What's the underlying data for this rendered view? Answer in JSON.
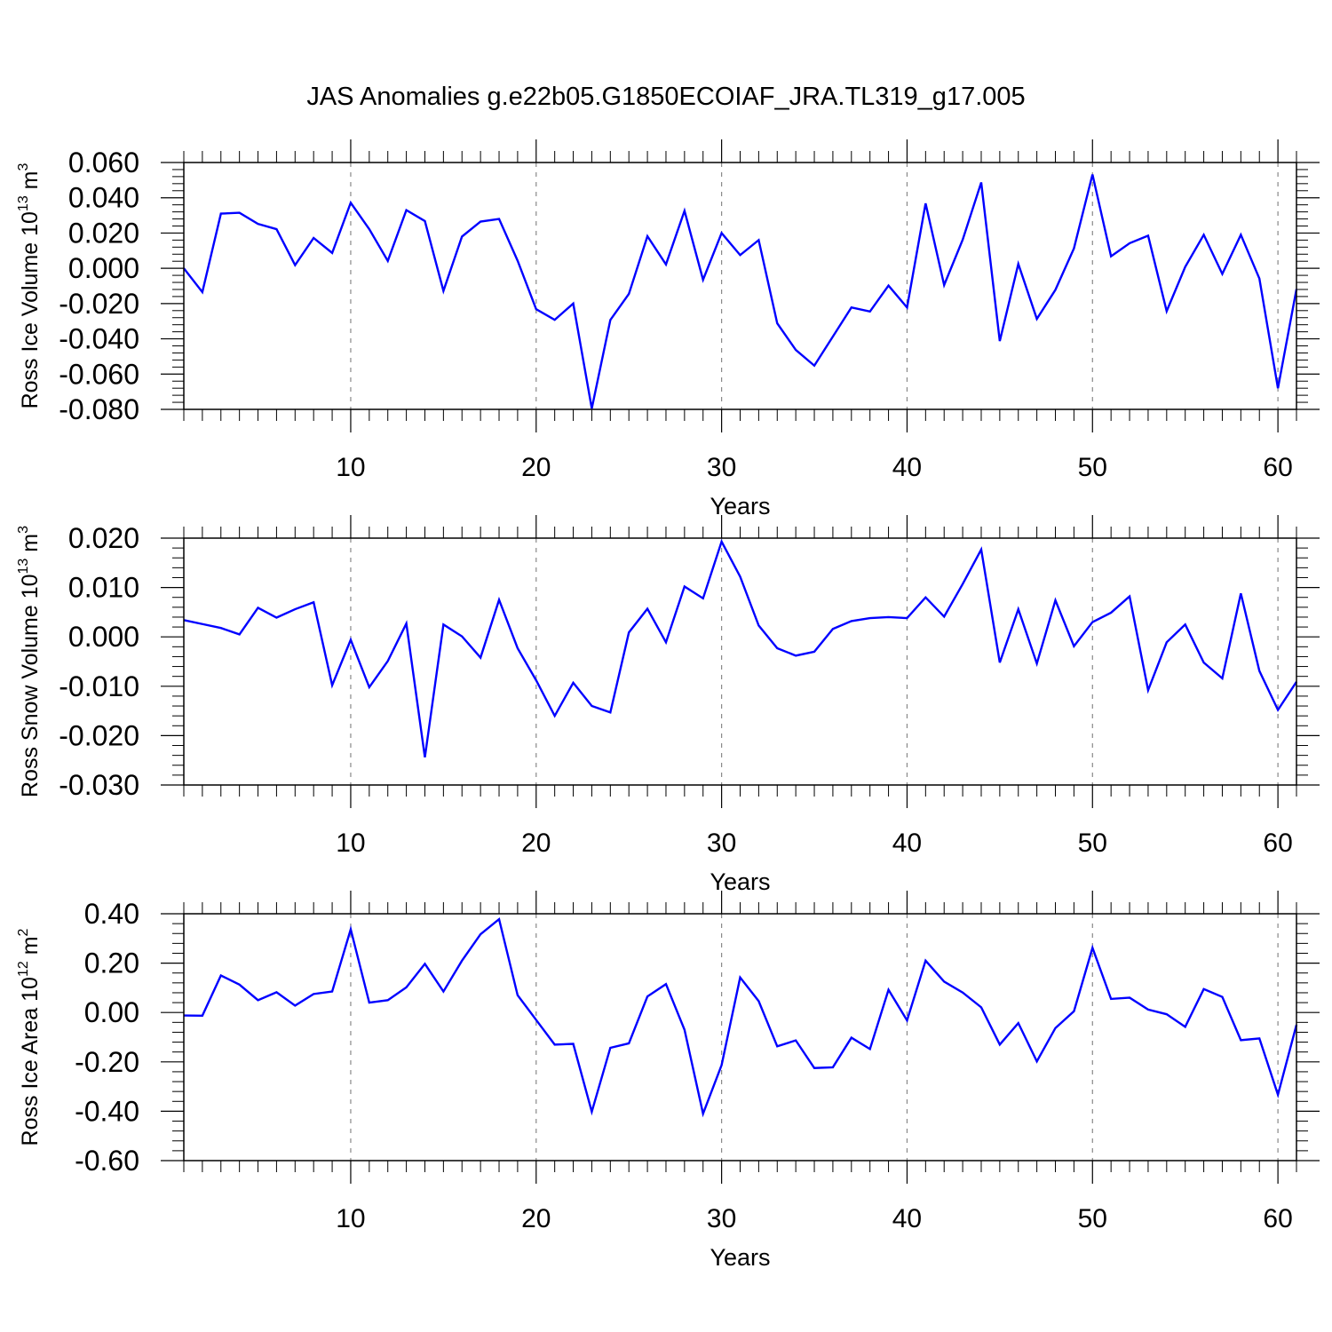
{
  "title": "JAS Anomalies g.e22b05.G1850ECOIAF_JRA.TL319_g17.005",
  "line_color": "#0000ff",
  "chart_data": [
    {
      "type": "line",
      "ylabel": "Ross Ice Volume 10",
      "ylabel_exp": "13",
      "ylabel_unit": " m",
      "ylabel_unit_exp": "3",
      "xlabel": "Years",
      "xlim": [
        1,
        61
      ],
      "ylim": [
        -0.08,
        0.06
      ],
      "yticks": [
        -0.08,
        -0.06,
        -0.04,
        -0.02,
        0.0,
        0.02,
        0.04,
        0.06
      ],
      "ytick_labels": [
        "-0.080",
        "-0.060",
        "-0.040",
        "-0.020",
        "0.000",
        "0.020",
        "0.040",
        "0.060"
      ],
      "xticks": [
        10,
        20,
        30,
        40,
        50,
        60
      ],
      "xtick_labels": [
        "10",
        "20",
        "30",
        "40",
        "50",
        "60"
      ],
      "grid_x": true,
      "values": [
        0.0,
        -0.0135,
        0.031,
        0.0315,
        0.0252,
        0.0222,
        0.0018,
        0.0172,
        0.0087,
        0.0372,
        0.0222,
        0.0042,
        0.033,
        0.0268,
        -0.0128,
        0.018,
        0.0265,
        0.028,
        0.0043,
        -0.0232,
        -0.0292,
        -0.02,
        -0.0795,
        -0.0293,
        -0.0145,
        0.0182,
        0.0022,
        0.0326,
        -0.0065,
        0.02,
        0.0075,
        0.016,
        -0.0312,
        -0.0463,
        -0.0552,
        -0.0387,
        -0.0222,
        -0.0245,
        -0.0098,
        -0.0222,
        0.0368,
        -0.0095,
        0.0162,
        0.0487,
        -0.0413,
        0.0025,
        -0.0287,
        -0.0122,
        0.0113,
        0.0532,
        0.0068,
        0.0142,
        0.0185,
        -0.0243,
        0.0008,
        0.019,
        -0.0032,
        0.019,
        -0.0058,
        -0.068,
        -0.0118
      ]
    },
    {
      "type": "line",
      "ylabel": "Ross Snow Volume 10",
      "ylabel_exp": "13",
      "ylabel_unit": " m",
      "ylabel_unit_exp": "3",
      "xlabel": "Years",
      "xlim": [
        1,
        61
      ],
      "ylim": [
        -0.03,
        0.02
      ],
      "yticks": [
        -0.03,
        -0.02,
        -0.01,
        0.0,
        0.01,
        0.02
      ],
      "ytick_labels": [
        "-0.030",
        "-0.020",
        "-0.010",
        "0.000",
        "0.010",
        "0.020"
      ],
      "xticks": [
        10,
        20,
        30,
        40,
        50,
        60
      ],
      "xtick_labels": [
        "10",
        "20",
        "30",
        "40",
        "50",
        "60"
      ],
      "grid_x": true,
      "values": [
        0.0034,
        0.0026,
        0.0018,
        0.0005,
        0.0059,
        0.0039,
        0.0056,
        0.007,
        -0.0098,
        -0.0006,
        -0.0102,
        -0.0049,
        0.0027,
        -0.0244,
        0.0025,
        0.0001,
        -0.0042,
        0.0075,
        -0.0023,
        -0.0088,
        -0.016,
        -0.0093,
        -0.014,
        -0.0153,
        0.0009,
        0.0057,
        -0.0011,
        0.0102,
        0.0078,
        0.0193,
        0.0122,
        0.0023,
        -0.0023,
        -0.0038,
        -0.003,
        0.0016,
        0.0032,
        0.0038,
        0.004,
        0.0038,
        0.008,
        0.0041,
        0.0107,
        0.0177,
        -0.0052,
        0.0056,
        -0.0054,
        0.0074,
        -0.0019,
        0.003,
        0.0049,
        0.0082,
        -0.0108,
        -0.0011,
        0.0025,
        -0.0052,
        -0.0084,
        0.0088,
        -0.0069,
        -0.0148,
        -0.0091
      ]
    },
    {
      "type": "line",
      "ylabel": "Ross Ice Area 10",
      "ylabel_exp": "12",
      "ylabel_unit": " m",
      "ylabel_unit_exp": "2",
      "xlabel": "Years",
      "xlim": [
        1,
        61
      ],
      "ylim": [
        -0.6,
        0.4
      ],
      "yticks": [
        -0.6,
        -0.4,
        -0.2,
        0.0,
        0.2,
        0.4
      ],
      "ytick_labels": [
        "-0.60",
        "-0.40",
        "-0.20",
        "0.00",
        "0.20",
        "0.40"
      ],
      "xticks": [
        10,
        20,
        30,
        40,
        50,
        60
      ],
      "xtick_labels": [
        "10",
        "20",
        "30",
        "40",
        "50",
        "60"
      ],
      "grid_x": true,
      "values": [
        -0.012,
        -0.013,
        0.15,
        0.113,
        0.05,
        0.082,
        0.028,
        0.075,
        0.085,
        0.337,
        0.04,
        0.05,
        0.102,
        0.197,
        0.085,
        0.21,
        0.317,
        0.378,
        0.07,
        -0.03,
        -0.13,
        -0.127,
        -0.402,
        -0.143,
        -0.125,
        0.065,
        0.115,
        -0.07,
        -0.41,
        -0.213,
        0.142,
        0.046,
        -0.137,
        -0.113,
        -0.225,
        -0.222,
        -0.102,
        -0.148,
        0.092,
        -0.032,
        0.21,
        0.125,
        0.081,
        0.021,
        -0.13,
        -0.043,
        -0.198,
        -0.063,
        0.005,
        0.262,
        0.055,
        0.06,
        0.012,
        -0.007,
        -0.058,
        0.095,
        0.063,
        -0.112,
        -0.105,
        -0.333,
        -0.05
      ]
    }
  ]
}
